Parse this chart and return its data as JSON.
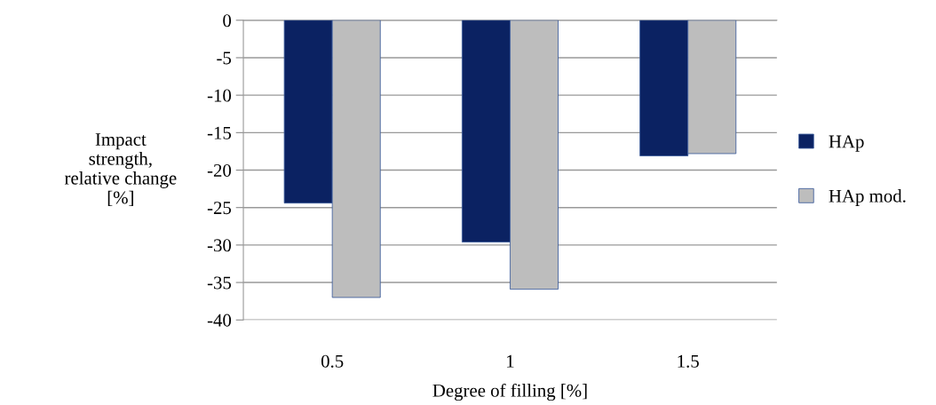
{
  "chart_data": {
    "type": "bar",
    "xlabel": "Degree of filling [%]",
    "ylabel": "Impact\nstrength,\nrelative change\n[%]",
    "categories": [
      "0.5",
      "1",
      "1.5"
    ],
    "series": [
      {
        "name": "HAp",
        "color": "#0b2262",
        "values": [
          -24.4,
          -29.6,
          -18.1
        ]
      },
      {
        "name": "HAp mod.",
        "color": "#bdbdbd",
        "values": [
          -37.0,
          -35.9,
          -17.8
        ]
      }
    ],
    "ylim": [
      -40,
      0
    ],
    "yticks": [
      -40,
      -35,
      -30,
      -25,
      -20,
      -15,
      -10,
      -5,
      0
    ],
    "grid": "y",
    "legend": "right"
  }
}
